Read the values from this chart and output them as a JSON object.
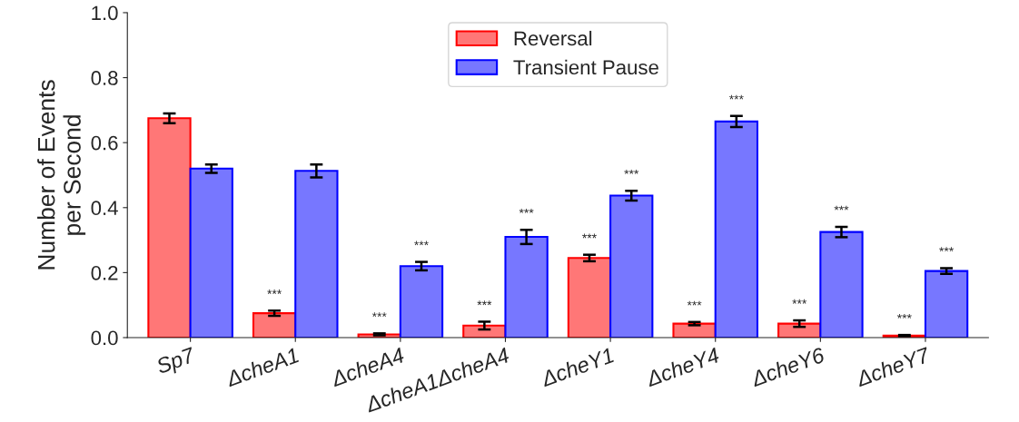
{
  "chart_data": {
    "type": "bar",
    "ylabel": "Number of Events\nper Second",
    "categories": [
      "Sp7",
      "ΔcheA1",
      "ΔcheA4",
      "ΔcheA1ΔcheA4",
      "ΔcheY1",
      "ΔcheY4",
      "ΔcheY6",
      "ΔcheY7"
    ],
    "series": [
      {
        "name": "Reversal",
        "color": "#ff7777",
        "values": [
          0.675,
          0.075,
          0.01,
          0.037,
          0.245,
          0.043,
          0.043,
          0.006
        ],
        "errors": [
          0.015,
          0.008,
          0.003,
          0.012,
          0.01,
          0.005,
          0.01,
          0.002
        ],
        "value_labels": [
          null,
          "***",
          "***",
          "***",
          "***",
          "***",
          "***",
          "***"
        ]
      },
      {
        "name": "Transient Pause",
        "color": "#7777ff",
        "values": [
          0.52,
          0.513,
          0.22,
          0.31,
          0.437,
          0.665,
          0.325,
          0.205
        ],
        "errors": [
          0.013,
          0.02,
          0.013,
          0.022,
          0.015,
          0.017,
          0.016,
          0.009
        ],
        "value_labels": [
          null,
          null,
          "***",
          "***",
          "***",
          "***",
          "***",
          "***"
        ]
      }
    ],
    "ylim": [
      0,
      1.0
    ],
    "yticks": [
      {
        "value": 0,
        "label": "0.0"
      },
      0.2,
      0.4,
      0.6,
      0.8,
      {
        "value": 1,
        "label": "1.0"
      }
    ],
    "grid": false,
    "legend": "top"
  }
}
